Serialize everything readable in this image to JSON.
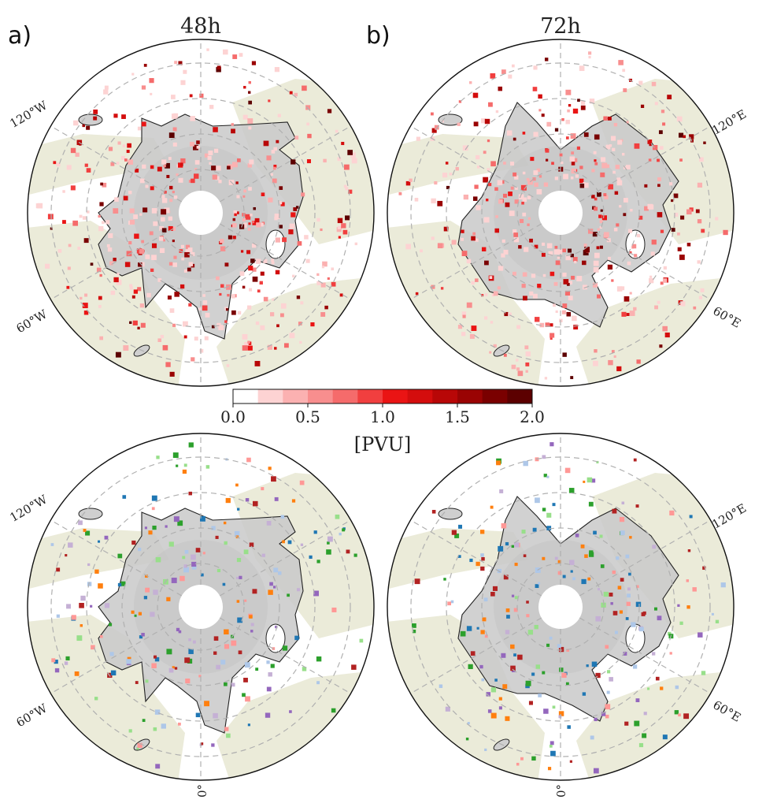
{
  "panels": [
    {
      "id": "a",
      "label": "a)",
      "title": "48h",
      "position": "top-left"
    },
    {
      "id": "b",
      "label": "b)",
      "title": "72h",
      "position": "top-right"
    },
    {
      "id": "c",
      "label": "",
      "title": "",
      "position": "bottom-left"
    },
    {
      "id": "d",
      "label": "",
      "title": "",
      "position": "bottom-right"
    }
  ],
  "longitude_labels": {
    "w120": "120°W",
    "w60": "60°W",
    "e120": "120°E",
    "e60": "60°E",
    "zero": "0°"
  },
  "colorbar": {
    "ticks": [
      "0.0",
      "0.5",
      "1.0",
      "1.5",
      "2.0"
    ],
    "label": "[PVU]",
    "vmin": 0.0,
    "vmax": 2.0,
    "colors": [
      "#ffffff",
      "#fdd3d3",
      "#fbb1b1",
      "#f88e8e",
      "#f56b6b",
      "#f13f3f",
      "#ea1414",
      "#d40d0d",
      "#b80707",
      "#9a0303",
      "#7a0000",
      "#5c0000"
    ]
  },
  "map_style": {
    "land_color": "#ebebd9",
    "tropopause_fill": "#c9c9c9",
    "gridline_color": "#b0b0b0",
    "cluster_colors": [
      "#b22222",
      "#2ca02c",
      "#ff7f0e",
      "#aec7e8",
      "#1f77b4",
      "#9467bd",
      "#c5b0d5",
      "#ff9896",
      "#98df8a"
    ]
  }
}
